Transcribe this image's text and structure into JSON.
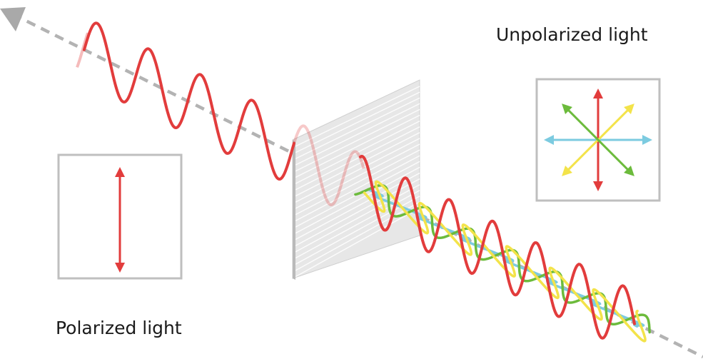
{
  "labels": {
    "unpolarized": "Unpolarized light",
    "polarized": "Polarized light"
  },
  "colors": {
    "red": "#e23c3c",
    "yellow": "#f3e34a",
    "blue": "#7ccbe0",
    "green": "#6cbb3c",
    "axis": "#b3b3b3",
    "box_border": "#bfbfbf",
    "filter_face": "#e6e6e6",
    "filter_lines": "#ffffff",
    "filter_top": "#8c8c8c"
  }
}
